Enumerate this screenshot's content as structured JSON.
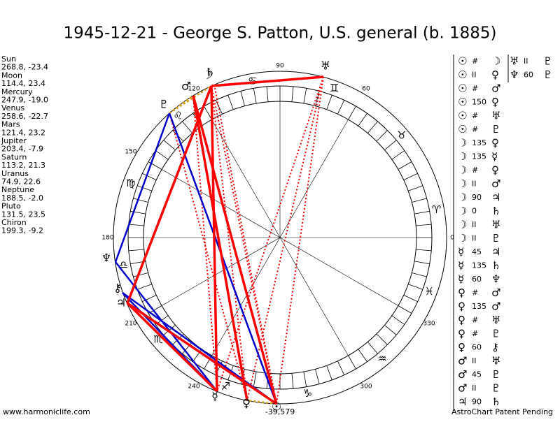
{
  "header": {
    "title": "1945-12-21 - George S. Patton, U.S. general (b. 1885)"
  },
  "planets": [
    {
      "name": "Sun",
      "coords": "268.8, -23.4",
      "glyph": "☉"
    },
    {
      "name": "Moon",
      "coords": "114.4, 23.4",
      "glyph": "☽"
    },
    {
      "name": "Mercury",
      "coords": "247.9, -19.0",
      "glyph": "☿"
    },
    {
      "name": "Venus",
      "coords": "258.6, -22.7",
      "glyph": "♀"
    },
    {
      "name": "Mars",
      "coords": "121.4, 23.2",
      "glyph": "♂"
    },
    {
      "name": "Jupiter",
      "coords": "203.4, -7.9",
      "glyph": "♃"
    },
    {
      "name": "Saturn",
      "coords": "113.2, 21.3",
      "glyph": "♄"
    },
    {
      "name": "Uranus",
      "coords": "74.9, 22.6",
      "glyph": "♅"
    },
    {
      "name": "Neptune",
      "coords": "188.5, -2.0",
      "glyph": "♆"
    },
    {
      "name": "Pluto",
      "coords": "131.5, 23.5",
      "glyph": "♇"
    },
    {
      "name": "Chiron",
      "coords": "199.3, -9.2",
      "glyph": "⚷"
    }
  ],
  "degree_labels": [
    0,
    60,
    90,
    120,
    150,
    180,
    210,
    240,
    300,
    330
  ],
  "signs": [
    "♈",
    "♉",
    "♊",
    "♋",
    "♌",
    "♍",
    "♎",
    "♏",
    "♐",
    "♑",
    "♒",
    "♓"
  ],
  "aspects": [
    [
      "☉",
      "#",
      "☽"
    ],
    [
      "☉",
      "II",
      "♀"
    ],
    [
      "☉",
      "#",
      "♂"
    ],
    [
      "☉",
      "150",
      "♀"
    ],
    [
      "☉",
      "#",
      "♅"
    ],
    [
      "☉",
      "#",
      "♇"
    ],
    [
      "☽",
      "135",
      "♀"
    ],
    [
      "☽",
      "135",
      "☿"
    ],
    [
      "☽",
      "#",
      "♀"
    ],
    [
      "☽",
      "II",
      "♂"
    ],
    [
      "☽",
      "90",
      "♃"
    ],
    [
      "☽",
      "0",
      "♄"
    ],
    [
      "☽",
      "II",
      "♅"
    ],
    [
      "☽",
      "II",
      "♇"
    ],
    [
      "☿",
      "45",
      "♃"
    ],
    [
      "☿",
      "135",
      "♄"
    ],
    [
      "☿",
      "60",
      "♆"
    ],
    [
      "♀",
      "#",
      "♂"
    ],
    [
      "♀",
      "135",
      "♂"
    ],
    [
      "♀",
      "#",
      "♅"
    ],
    [
      "♀",
      "#",
      "♇"
    ],
    [
      "♀",
      "60",
      "⚷"
    ],
    [
      "♂",
      "II",
      "♅"
    ],
    [
      "♂",
      "45",
      "♇"
    ],
    [
      "♂",
      "II",
      "♇"
    ],
    [
      "♃",
      "90",
      "♄"
    ]
  ],
  "aspects_col2": [
    [
      "♅",
      "II",
      "♇"
    ],
    [
      "♆",
      "60",
      "♇"
    ]
  ],
  "footer": {
    "left": "www.harmoniclife.com",
    "center": "-39,579",
    "right": "AstroChart Patent Pending"
  }
}
